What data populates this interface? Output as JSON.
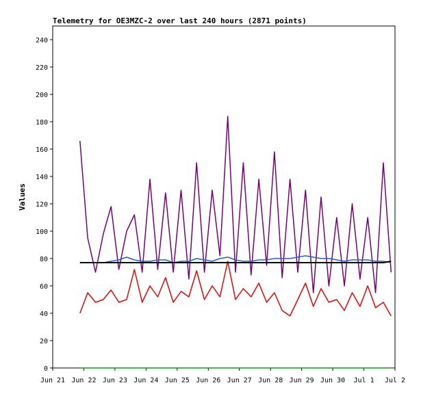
{
  "chart_data": {
    "type": "line",
    "title": "Telemetry for OE3MZC-2 over last 240 hours (2871 points)",
    "ylabel": "Values",
    "xlabel": "",
    "ylim": [
      0,
      250
    ],
    "yticks": [
      0,
      20,
      40,
      60,
      80,
      100,
      120,
      140,
      160,
      180,
      200,
      220,
      240
    ],
    "xlim": [
      "Jun 21",
      "Jul 2"
    ],
    "x_tick_labels": [
      "Jun 21",
      "Jun 22",
      "Jun 23",
      "Jun 24",
      "Jun 25",
      "Jun 26",
      "Jun 27",
      "Jun 28",
      "Jun 29",
      "Jun 30",
      "Jul 1",
      "Jul 2"
    ],
    "grid": false,
    "legend": "none",
    "x": [
      "Jun 21 21:00",
      "Jun 22 03:00",
      "Jun 22 09:00",
      "Jun 22 15:00",
      "Jun 22 21:00",
      "Jun 23 03:00",
      "Jun 23 09:00",
      "Jun 23 15:00",
      "Jun 23 21:00",
      "Jun 24 03:00",
      "Jun 24 09:00",
      "Jun 24 15:00",
      "Jun 24 21:00",
      "Jun 25 03:00",
      "Jun 25 09:00",
      "Jun 25 15:00",
      "Jun 25 21:00",
      "Jun 26 03:00",
      "Jun 26 09:00",
      "Jun 26 15:00",
      "Jun 26 21:00",
      "Jun 27 03:00",
      "Jun 27 09:00",
      "Jun 27 15:00",
      "Jun 27 21:00",
      "Jun 28 03:00",
      "Jun 28 09:00",
      "Jun 28 15:00",
      "Jun 28 21:00",
      "Jun 29 03:00",
      "Jun 29 09:00",
      "Jun 29 15:00",
      "Jun 29 21:00",
      "Jun 30 03:00",
      "Jun 30 09:00",
      "Jun 30 15:00",
      "Jun 30 21:00",
      "Jul 1 03:00",
      "Jul 1 09:00",
      "Jul 1 15:00",
      "Jul 1 21:00"
    ],
    "series": [
      {
        "color": "#770077",
        "values": [
          166,
          95,
          70,
          98,
          118,
          72,
          100,
          112,
          70,
          138,
          72,
          128,
          70,
          130,
          65,
          150,
          70,
          130,
          82,
          184,
          70,
          150,
          68,
          138,
          75,
          158,
          66,
          138,
          70,
          130,
          55,
          125,
          60,
          110,
          60,
          120,
          65,
          110,
          55,
          150,
          70
        ]
      },
      {
        "color": "#1e5fc8",
        "values": [
          77,
          77,
          77,
          77,
          78,
          79,
          81,
          79,
          78,
          78,
          79,
          79,
          77,
          78,
          78,
          80,
          79,
          78,
          80,
          81,
          79,
          78,
          78,
          79,
          79,
          80,
          80,
          80,
          81,
          82,
          81,
          80,
          80,
          79,
          78,
          79,
          79,
          79,
          78,
          78,
          77
        ]
      },
      {
        "color": "#ee0000",
        "values": [
          40,
          55,
          48,
          50,
          57,
          48,
          50,
          72,
          48,
          60,
          52,
          66,
          48,
          56,
          52,
          71,
          50,
          60,
          52,
          78,
          50,
          58,
          52,
          62,
          48,
          55,
          42,
          38,
          50,
          62,
          45,
          58,
          48,
          50,
          42,
          55,
          45,
          60,
          44,
          48,
          38
        ]
      },
      {
        "color": "#000000",
        "values": [
          77,
          77,
          77,
          77,
          77,
          77,
          77,
          77,
          77,
          77,
          77,
          77,
          77,
          77,
          77,
          77,
          77,
          77,
          77,
          77,
          77,
          77,
          77,
          77,
          77,
          77,
          77,
          77,
          77,
          77,
          77,
          77,
          77,
          77,
          77,
          77,
          77,
          77,
          77,
          77,
          78
        ]
      },
      {
        "color": "#00aa00",
        "values": [
          0,
          0,
          0,
          0,
          0,
          0,
          0,
          0,
          0,
          0,
          0,
          0,
          0,
          0,
          0,
          0,
          0,
          0,
          0,
          0,
          0,
          0,
          0,
          0,
          0,
          0,
          0,
          0,
          0,
          0,
          0,
          0,
          0,
          0,
          0,
          0,
          0,
          0,
          0,
          0,
          0
        ]
      }
    ]
  }
}
